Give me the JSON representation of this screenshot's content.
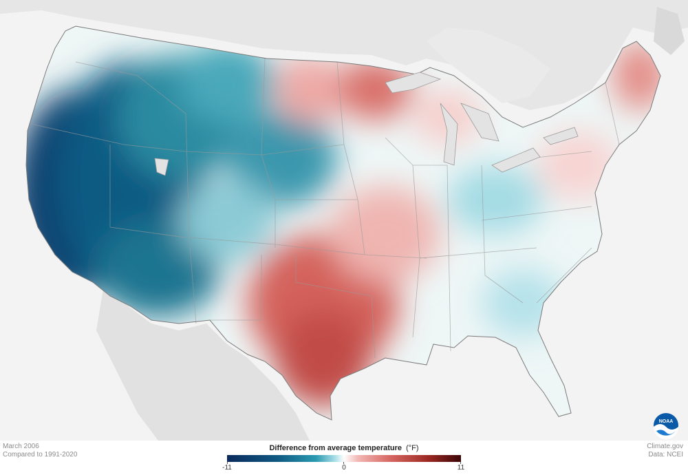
{
  "map": {
    "region": "Contiguous United States",
    "variable": "temperature anomaly",
    "anomaly_regions": [
      {
        "area": "California / Nevada / Oregon",
        "tendency": "strong negative"
      },
      {
        "area": "Idaho / Utah / Arizona",
        "tendency": "negative"
      },
      {
        "area": "Montana / Wyoming / Nebraska",
        "tendency": "moderate negative"
      },
      {
        "area": "Texas / Oklahoma",
        "tendency": "strong positive"
      },
      {
        "area": "Minnesota / Dakotas",
        "tendency": "positive"
      },
      {
        "area": "Maine",
        "tendency": "positive"
      },
      {
        "area": "Ohio Valley / Southeast",
        "tendency": "slightly negative"
      }
    ]
  },
  "footer": {
    "left_line1": "March 2006",
    "left_line2": "Compared to 1991-2020",
    "right_line1": "Climate.gov",
    "right_line2": "Data: NCEI"
  },
  "legend": {
    "title": "Difference from average temperature",
    "unit": "(°F)",
    "min_label": "-11",
    "mid_label": "0",
    "max_label": "11",
    "min_value": -11,
    "max_value": 11,
    "colors": {
      "cold_extreme": "#0a2a5c",
      "cold": "#2a9ab0",
      "neutral": "#ffffff",
      "warm": "#d66661",
      "warm_extreme": "#3b0606"
    }
  },
  "logo": {
    "text": "NOAA",
    "icon": "noaa-logo-icon"
  }
}
